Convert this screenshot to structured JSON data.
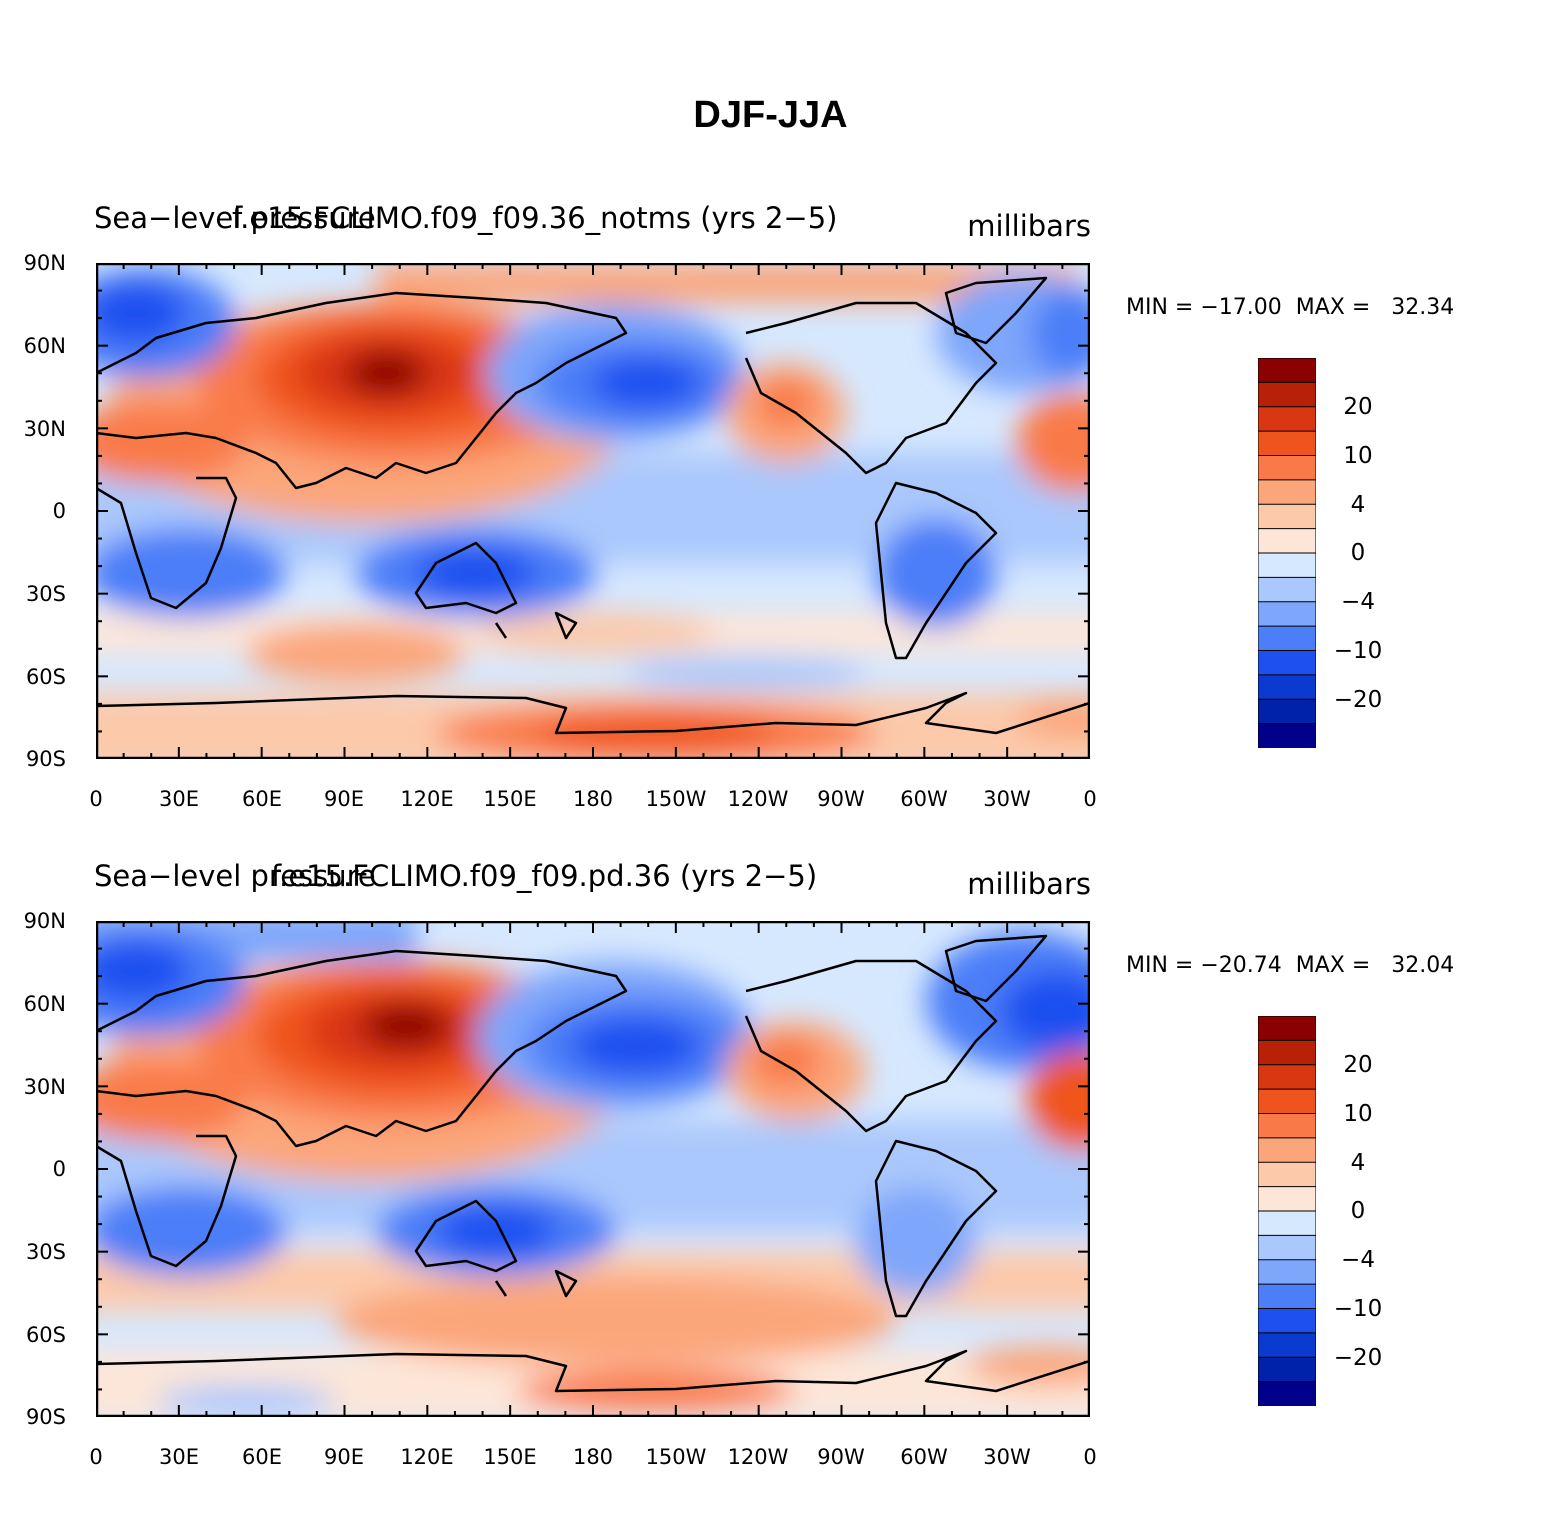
{
  "title": "DJF-JJA",
  "axes": {
    "y_ticks": [
      "90N",
      "60N",
      "30N",
      "0",
      "30S",
      "60S",
      "90S"
    ],
    "x_ticks": [
      "0",
      "30E",
      "60E",
      "90E",
      "120E",
      "150E",
      "180",
      "150W",
      "120W",
      "90W",
      "60W",
      "30W",
      "0"
    ]
  },
  "colorbar": {
    "labels": [
      "20",
      "10",
      "4",
      "0",
      "−4",
      "−10",
      "−20"
    ],
    "levels": [
      -30,
      -25,
      -20,
      -15,
      -10,
      -6,
      -4,
      -2,
      0,
      2,
      4,
      6,
      10,
      15,
      20,
      25,
      30
    ],
    "colors": [
      "#00008b",
      "#0022aa",
      "#0a3ad0",
      "#1e50f0",
      "#4c7ef8",
      "#7ea6fa",
      "#aac8fc",
      "#d6e8fe",
      "#fde6d8",
      "#fcc9aa",
      "#fba67a",
      "#f97a48",
      "#f0541e",
      "#d93612",
      "#b92008",
      "#8b0000"
    ]
  },
  "panels": [
    {
      "left_label": "Sea−level pressure",
      "center_label": "f.e15.FCLIMO.f09_f09.36_notms (yrs 2−5)",
      "units": "millibars",
      "min_text": "MIN = −17.00",
      "max_text": "MAX =   32.34",
      "min": -17.0,
      "max": 32.34
    },
    {
      "left_label": "Sea−level pressure",
      "center_label": "f.e15.FCLIMO.f09_f09.pd.36 (yrs 2−5)",
      "units": "millibars",
      "min_text": "MIN = −20.74",
      "max_text": "MAX =   32.04",
      "min": -20.74,
      "max": 32.04
    }
  ]
}
